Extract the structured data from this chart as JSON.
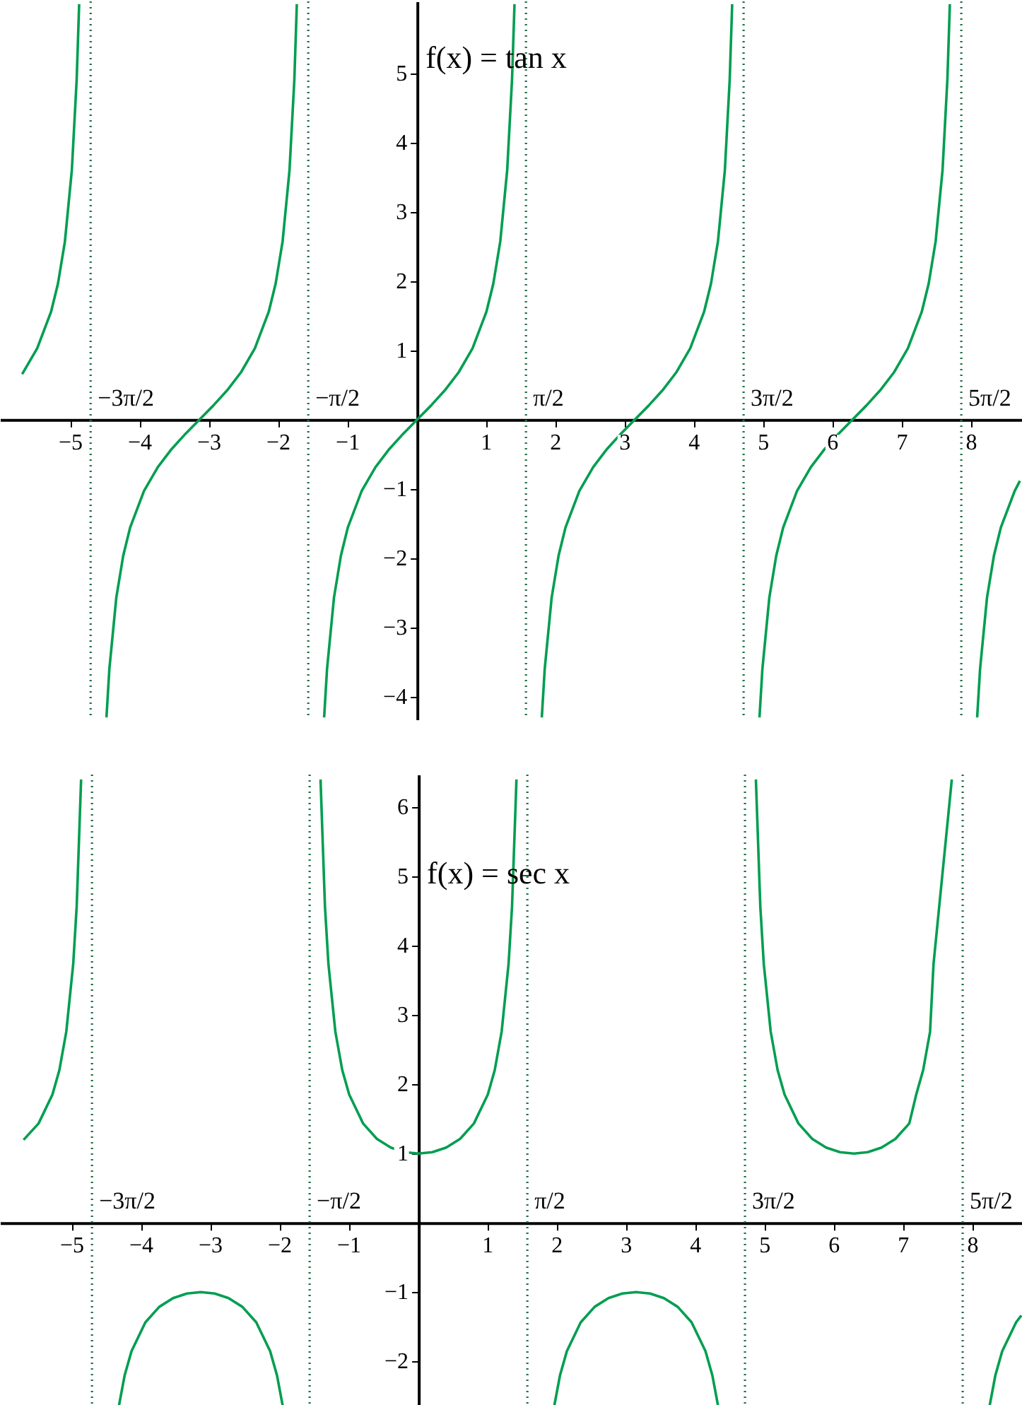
{
  "chart_data": [
    {
      "type": "line",
      "annotations": [
        "f(x) = tan x"
      ],
      "xlim": [
        -6.02,
        8.73
      ],
      "ylim": [
        -4.33,
        6.04
      ],
      "xticks": [
        -5,
        -4,
        -3,
        -2,
        -1,
        1,
        2,
        3,
        4,
        5,
        6,
        7,
        8
      ],
      "yticks": [
        -4,
        -3,
        -2,
        -1,
        1,
        2,
        3,
        4,
        5
      ],
      "ref_lines": [
        {
          "axis": "x",
          "value": -4.712,
          "label": "−3π/2",
          "color": "#1f6f45",
          "line_style": "dotted"
        },
        {
          "axis": "x",
          "value": -1.571,
          "label": "−π/2",
          "color": "#1f6f45",
          "line_style": "dotted"
        },
        {
          "axis": "x",
          "value": 1.571,
          "label": "π/2",
          "color": "#1f6f45",
          "line_style": "dotted"
        },
        {
          "axis": "x",
          "value": 4.712,
          "label": "3π/2",
          "color": "#1f6f45",
          "line_style": "dotted"
        },
        {
          "axis": "x",
          "value": 7.854,
          "label": "5π/2",
          "color": "#1f6f45",
          "line_style": "dotted"
        }
      ],
      "series": [
        {
          "color": "#009e50",
          "x": [
            -5.7,
            -5.4832,
            -5.2832,
            -5.1832,
            -5.0832,
            -4.9832,
            -4.9132,
            -4.8776
          ],
          "values": [
            0.658,
            1.03,
            1.557,
            1.965,
            2.572,
            3.602,
            4.913,
            6.0
          ]
        },
        {
          "color": "#009e50",
          "x": [
            -4.4836,
            -4.4416,
            -4.3416,
            -4.2416,
            -4.1416,
            -3.9416,
            -3.7416,
            -3.5416,
            -3.3416,
            -3.1416,
            -2.9416,
            -2.7416,
            -2.5416,
            -2.3416,
            -2.1416,
            -2.0416,
            -1.9416,
            -1.8416,
            -1.7716,
            -1.736
          ],
          "values": [
            -4.3,
            -3.602,
            -2.572,
            -1.965,
            -1.557,
            -1.03,
            -0.684,
            -0.423,
            -0.203,
            0,
            0.203,
            0.423,
            0.684,
            1.03,
            1.557,
            1.965,
            2.572,
            3.602,
            4.913,
            6.0
          ]
        },
        {
          "color": "#009e50",
          "x": [
            -1.342,
            -1.3,
            -1.2,
            -1.1,
            -1.0,
            -0.8,
            -0.6,
            -0.4,
            -0.2,
            0,
            0.2,
            0.4,
            0.6,
            0.8,
            1.0,
            1.1,
            1.2,
            1.3,
            1.37,
            1.4056
          ],
          "values": [
            -4.3,
            -3.602,
            -2.572,
            -1.965,
            -1.557,
            -1.03,
            -0.684,
            -0.423,
            -0.203,
            0,
            0.203,
            0.423,
            0.684,
            1.03,
            1.557,
            1.965,
            2.572,
            3.602,
            4.913,
            6.0
          ]
        },
        {
          "color": "#009e50",
          "x": [
            1.7996,
            1.8416,
            1.9416,
            2.0416,
            2.1416,
            2.3416,
            2.5416,
            2.7416,
            2.9416,
            3.1416,
            3.3416,
            3.5416,
            3.7416,
            3.9416,
            4.1416,
            4.2416,
            4.3416,
            4.4416,
            4.5116,
            4.5472
          ],
          "values": [
            -4.3,
            -3.602,
            -2.572,
            -1.965,
            -1.557,
            -1.03,
            -0.684,
            -0.423,
            -0.203,
            0,
            0.203,
            0.423,
            0.684,
            1.03,
            1.557,
            1.965,
            2.572,
            3.602,
            4.913,
            6.0
          ]
        },
        {
          "color": "#009e50",
          "x": [
            4.9412,
            4.9832,
            5.0832,
            5.1832,
            5.2832,
            5.4832,
            5.6832,
            5.8832,
            6.0832,
            6.2832,
            6.4832,
            6.6832,
            6.8832,
            7.0832,
            7.2832,
            7.3832,
            7.4832,
            7.5832,
            7.6532,
            7.6888
          ],
          "values": [
            -4.3,
            -3.602,
            -2.572,
            -1.965,
            -1.557,
            -1.03,
            -0.684,
            -0.423,
            -0.203,
            0,
            0.203,
            0.423,
            0.684,
            1.03,
            1.557,
            1.965,
            2.572,
            3.602,
            4.913,
            6.0
          ]
        },
        {
          "color": "#009e50",
          "x": [
            8.0828,
            8.1248,
            8.2248,
            8.3248,
            8.4248,
            8.6248,
            8.7
          ],
          "values": [
            -4.3,
            -3.602,
            -2.572,
            -1.965,
            -1.557,
            -1.03,
            -0.884
          ]
        }
      ]
    },
    {
      "type": "line",
      "annotations": [
        "f(x) = sec x"
      ],
      "xlim": [
        -6.04,
        8.71
      ],
      "ylim": [
        -2.69,
        6.47
      ],
      "xticks": [
        -5,
        -4,
        -3,
        -2,
        -1,
        1,
        2,
        3,
        4,
        5,
        6,
        7,
        8
      ],
      "yticks": [
        -2,
        -1,
        1,
        2,
        3,
        4,
        5,
        6
      ],
      "ref_lines": [
        {
          "axis": "x",
          "value": -4.712,
          "label": "−3π/2",
          "color": "#1f6f45",
          "line_style": "dotted"
        },
        {
          "axis": "x",
          "value": -1.571,
          "label": "−π/2",
          "color": "#1f6f45",
          "line_style": "dotted"
        },
        {
          "axis": "x",
          "value": 1.571,
          "label": "π/2",
          "color": "#1f6f45",
          "line_style": "dotted"
        },
        {
          "axis": "x",
          "value": 4.712,
          "label": "3π/2",
          "color": "#1f6f45",
          "line_style": "dotted"
        },
        {
          "axis": "x",
          "value": 7.854,
          "label": "5π/2",
          "color": "#1f6f45",
          "line_style": "dotted"
        }
      ],
      "series": [
        {
          "color": "#009e50",
          "x": [
            -5.7,
            -5.4832,
            -5.2832,
            -5.1832,
            -5.0832,
            -4.9832,
            -4.9332,
            -4.8694
          ],
          "values": [
            1.198,
            1.435,
            1.851,
            2.204,
            2.76,
            3.738,
            4.566,
            6.4
          ]
        },
        {
          "color": "#009e50",
          "x": [
            -4.3254,
            -4.2416,
            -4.1416,
            -3.9416,
            -3.7416,
            -3.5416,
            -3.3416,
            -3.1416,
            -2.9416,
            -2.7416,
            -2.5416,
            -2.3416,
            -2.1416,
            -2.0416,
            -1.9578
          ],
          "values": [
            -2.65,
            -2.204,
            -1.851,
            -1.435,
            -1.212,
            -1.086,
            -1.02,
            -1,
            -1.02,
            -1.086,
            -1.212,
            -1.435,
            -1.851,
            -2.204,
            -2.65
          ]
        },
        {
          "color": "#009e50",
          "x": [
            -1.4139,
            -1.35,
            -1.3,
            -1.2,
            -1.1,
            -1.0,
            -0.8,
            -0.6,
            -0.4,
            -0.2,
            0,
            0.2,
            0.4,
            0.6,
            0.8,
            1.0,
            1.1,
            1.2,
            1.3,
            1.35,
            1.4139
          ],
          "values": [
            6.4,
            4.566,
            3.738,
            2.76,
            2.204,
            1.851,
            1.435,
            1.212,
            1.086,
            1.02,
            1,
            1.02,
            1.086,
            1.212,
            1.435,
            1.851,
            2.204,
            2.76,
            3.738,
            4.566,
            6.4
          ]
        },
        {
          "color": "#009e50",
          "x": [
            1.9578,
            2.0416,
            2.1416,
            2.3416,
            2.5416,
            2.7416,
            2.9416,
            3.1416,
            3.3416,
            3.5416,
            3.7416,
            3.9416,
            4.1416,
            4.2416,
            4.3254
          ],
          "values": [
            -2.65,
            -2.204,
            -1.851,
            -1.435,
            -1.212,
            -1.086,
            -1.02,
            -1,
            -1.02,
            -1.086,
            -1.212,
            -1.435,
            -1.851,
            -2.204,
            -2.65
          ]
        },
        {
          "color": "#009e50",
          "x": [
            4.8694,
            4.9332,
            4.9832,
            5.0832,
            5.1832,
            5.2832,
            5.4832,
            5.6832,
            5.8832,
            6.0832,
            6.2832,
            6.4832,
            6.6832,
            6.8832,
            7.0832,
            7.1832,
            7.2832,
            7.3832,
            7.4332,
            7.697
          ],
          "values": [
            6.4,
            4.566,
            3.738,
            2.76,
            2.204,
            1.851,
            1.435,
            1.212,
            1.086,
            1.02,
            1,
            1.02,
            1.086,
            1.212,
            1.435,
            1.851,
            2.204,
            2.76,
            3.738,
            6.4
          ]
        },
        {
          "color": "#009e50",
          "x": [
            8.241,
            8.3248,
            8.4248,
            8.6248,
            8.7
          ],
          "values": [
            -2.65,
            -2.204,
            -1.851,
            -1.435,
            -1.336
          ]
        }
      ]
    }
  ]
}
